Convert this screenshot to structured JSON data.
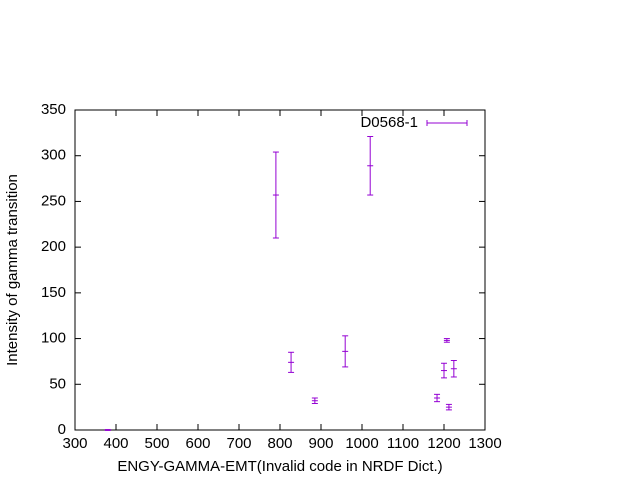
{
  "chart_data": {
    "type": "errorbar",
    "x_label": "ENGY-GAMMA-EMT(Invalid code in NRDF Dict.)",
    "y_label": "Intensity of gamma transition",
    "xlim": [
      300,
      1300
    ],
    "xticks": [
      300,
      400,
      500,
      600,
      700,
      800,
      900,
      1000,
      1100,
      1200,
      1300
    ],
    "ylim": [
      0,
      350
    ],
    "yticks": [
      0,
      50,
      100,
      150,
      200,
      250,
      300,
      350
    ],
    "legend": "top-right",
    "series": [
      {
        "name": "D0568-1",
        "color": "#9400d3",
        "x": [
          380,
          790,
          827,
          885,
          959,
          1020,
          1183,
          1200,
          1207,
          1212,
          1224
        ],
        "values": [
          0,
          257,
          74,
          32,
          86,
          289,
          35,
          65,
          98,
          25,
          67
        ],
        "errors": [
          0.5,
          47,
          11,
          3,
          17,
          32,
          4,
          8,
          2,
          3,
          9
        ]
      }
    ]
  }
}
